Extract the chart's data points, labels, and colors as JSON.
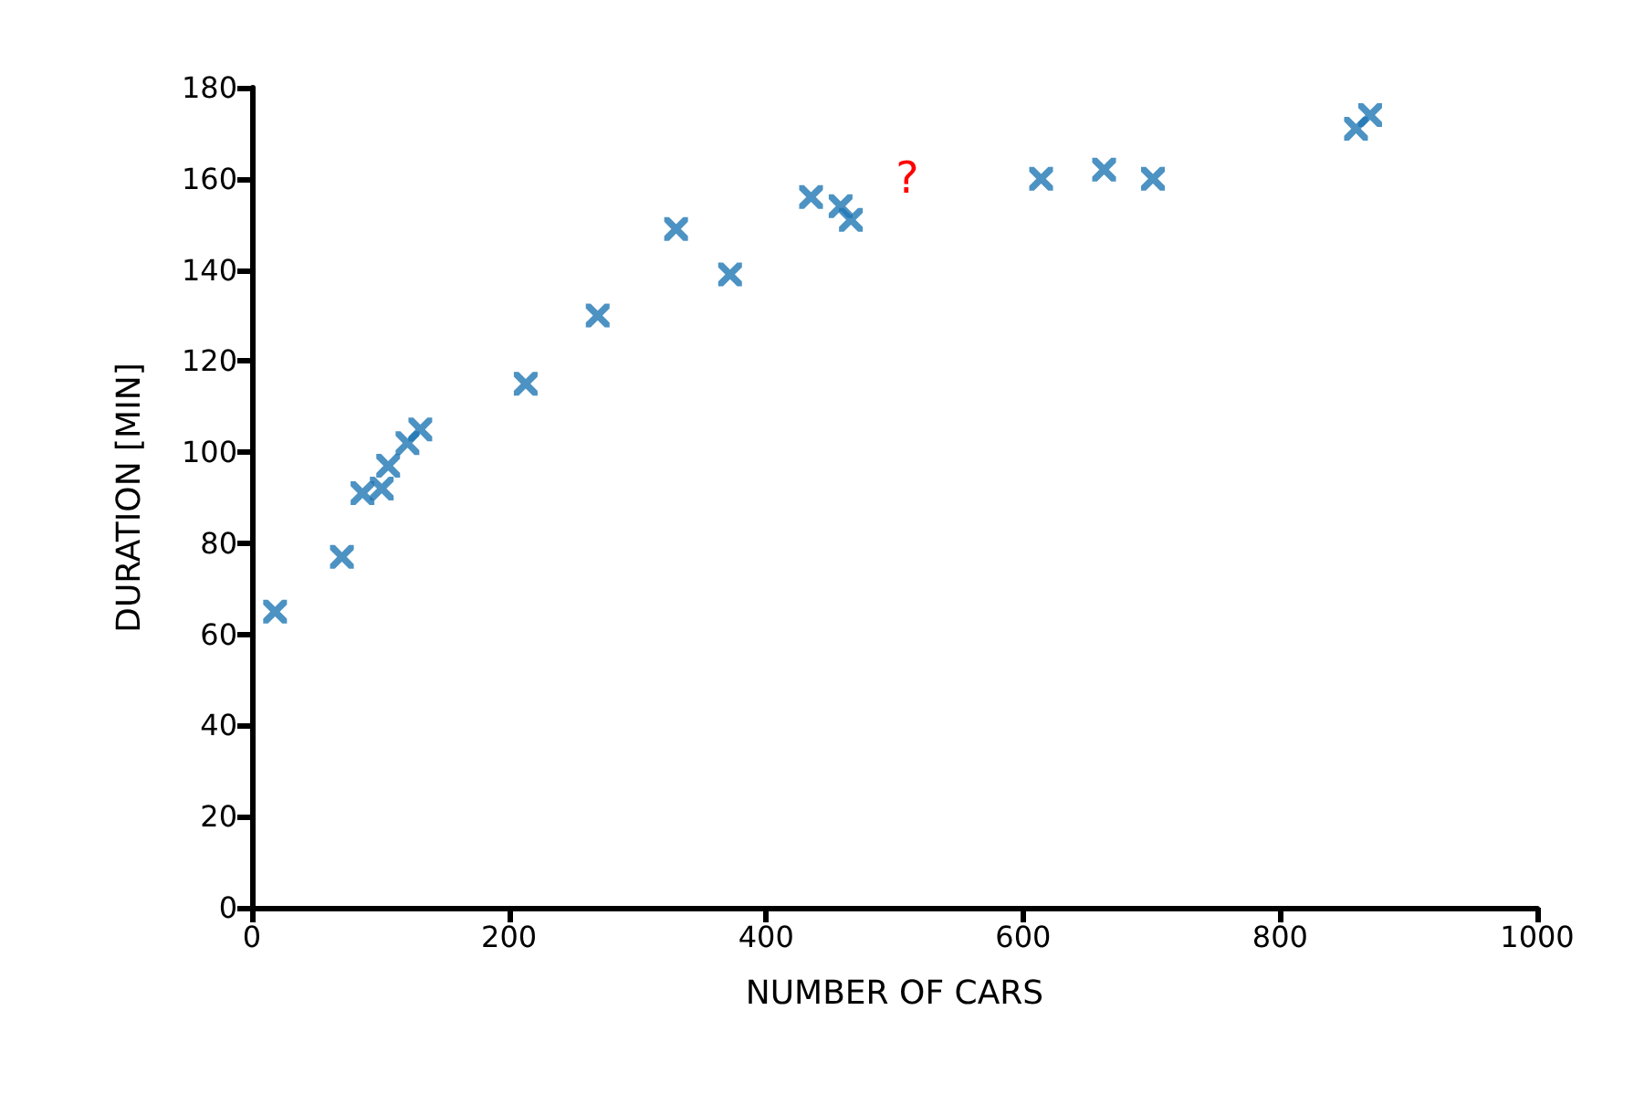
{
  "chart_data": {
    "type": "scatter",
    "xlabel": "NUMBER OF CARS",
    "ylabel": "DURATION [MIN]",
    "x": [
      18,
      70,
      86,
      101,
      106,
      121,
      131,
      213,
      269,
      330,
      372,
      435,
      458,
      466,
      614,
      663,
      701,
      859,
      870
    ],
    "values": [
      65,
      77,
      91,
      92,
      97,
      102,
      105,
      115,
      130,
      149,
      139,
      156,
      154,
      151,
      160,
      162,
      160,
      171,
      174
    ],
    "color": "#1f77b4",
    "marker": "cross",
    "xlim": [
      0,
      1000
    ],
    "ylim": [
      0,
      180
    ],
    "xticks": [
      0,
      200,
      400,
      600,
      800,
      1000
    ],
    "yticks": [
      0,
      20,
      40,
      60,
      80,
      100,
      120,
      140,
      160,
      180
    ],
    "grid": false,
    "annotations": [
      "?"
    ]
  }
}
